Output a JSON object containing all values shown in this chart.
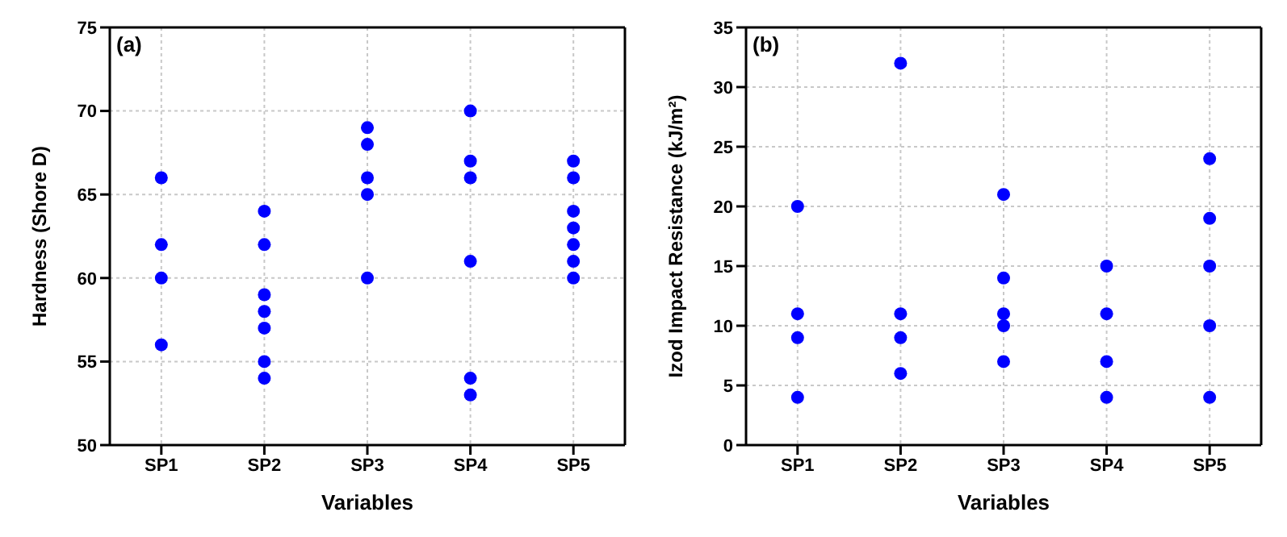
{
  "chart_data": [
    {
      "type": "scatter",
      "xlabel": "Variables",
      "ylabel": "Hardness (Shore D)",
      "annotations": [
        "(a)"
      ],
      "categories": [
        "SP1",
        "SP2",
        "SP3",
        "SP4",
        "SP5"
      ],
      "ylim": [
        50,
        75
      ],
      "yticks": [
        50,
        55,
        60,
        65,
        70,
        75
      ],
      "grid": true,
      "marker": "circle",
      "series": [
        {
          "color": "#0000ff",
          "x": [
            "SP1",
            "SP1",
            "SP1",
            "SP1",
            "SP2",
            "SP2",
            "SP2",
            "SP2",
            "SP2",
            "SP2",
            "SP2",
            "SP3",
            "SP3",
            "SP3",
            "SP3",
            "SP3",
            "SP4",
            "SP4",
            "SP4",
            "SP4",
            "SP4",
            "SP4",
            "SP5",
            "SP5",
            "SP5",
            "SP5",
            "SP5",
            "SP5",
            "SP5"
          ],
          "values": [
            66,
            62,
            60,
            56,
            64,
            62,
            59,
            58,
            57,
            55,
            54,
            69,
            68,
            66,
            65,
            60,
            70,
            67,
            66,
            61,
            54,
            53,
            67,
            66,
            64,
            63,
            62,
            61,
            60
          ]
        }
      ]
    },
    {
      "type": "scatter",
      "xlabel": "Variables",
      "ylabel": "Izod Impact Resistance (kJ/m²)",
      "annotations": [
        "(b)"
      ],
      "categories": [
        "SP1",
        "SP2",
        "SP3",
        "SP4",
        "SP5"
      ],
      "ylim": [
        0,
        35
      ],
      "yticks": [
        0,
        5,
        10,
        15,
        20,
        25,
        30,
        35
      ],
      "grid": true,
      "marker": "circle",
      "series": [
        {
          "color": "#0000ff",
          "x": [
            "SP1",
            "SP1",
            "SP1",
            "SP1",
            "SP2",
            "SP2",
            "SP2",
            "SP2",
            "SP3",
            "SP3",
            "SP3",
            "SP3",
            "SP3",
            "SP4",
            "SP4",
            "SP4",
            "SP4",
            "SP5",
            "SP5",
            "SP5",
            "SP5",
            "SP5"
          ],
          "values": [
            20,
            11,
            9,
            4,
            32,
            11,
            9,
            6,
            21,
            14,
            11,
            10,
            7,
            15,
            11,
            7,
            4,
            24,
            19,
            15,
            10,
            4
          ]
        }
      ]
    }
  ]
}
